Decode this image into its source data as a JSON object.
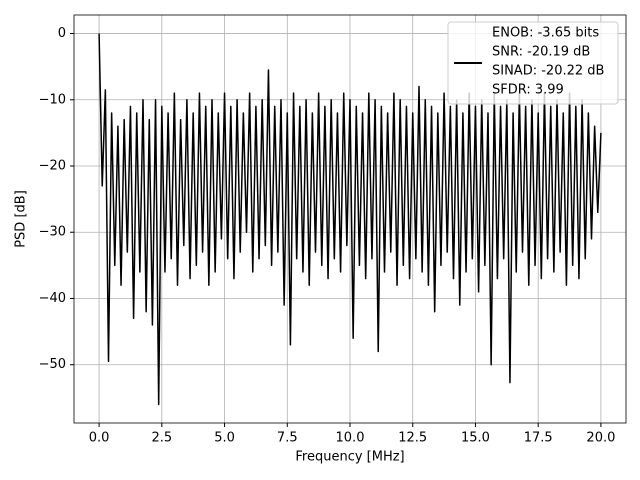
{
  "chart_data": {
    "type": "line",
    "xlabel": "Frequency [MHz]",
    "ylabel": "PSD [dB]",
    "xlim": [
      -1,
      21
    ],
    "ylim": [
      -58.8,
      2.8
    ],
    "xticks": [
      {
        "value": 0,
        "label": "0.0"
      },
      2.5,
      {
        "value": 5,
        "label": "5.0"
      },
      7.5,
      {
        "value": 10,
        "label": "10.0"
      },
      12.5,
      {
        "value": 15,
        "label": "15.0"
      },
      17.5,
      {
        "value": 20,
        "label": "20.0"
      }
    ],
    "yticks": [
      {
        "value": 0,
        "label": "0"
      },
      {
        "value": -10,
        "label": "−10"
      },
      {
        "value": -20,
        "label": "−20"
      },
      {
        "value": -30,
        "label": "−30"
      },
      {
        "value": -40,
        "label": "−40"
      },
      {
        "value": -50,
        "label": "−50"
      }
    ],
    "grid": true,
    "legend": "upper right",
    "x": [
      0,
      0.125,
      0.25,
      0.375,
      0.5,
      0.625,
      0.75,
      0.875,
      1,
      1.125,
      1.25,
      1.375,
      1.5,
      1.625,
      1.75,
      1.875,
      2,
      2.125,
      2.25,
      2.375,
      2.5,
      2.625,
      2.75,
      2.875,
      3,
      3.125,
      3.25,
      3.375,
      3.5,
      3.625,
      3.75,
      3.875,
      4,
      4.125,
      4.25,
      4.375,
      4.5,
      4.625,
      4.75,
      4.875,
      5,
      5.125,
      5.25,
      5.375,
      5.5,
      5.625,
      5.75,
      5.875,
      6,
      6.125,
      6.25,
      6.375,
      6.5,
      6.625,
      6.75,
      6.875,
      7,
      7.125,
      7.25,
      7.375,
      7.5,
      7.625,
      7.75,
      7.875,
      8,
      8.125,
      8.25,
      8.375,
      8.5,
      8.625,
      8.75,
      8.875,
      9,
      9.125,
      9.25,
      9.375,
      9.5,
      9.625,
      9.75,
      9.875,
      10,
      10.125,
      10.25,
      10.375,
      10.5,
      10.625,
      10.75,
      10.875,
      11,
      11.125,
      11.25,
      11.375,
      11.5,
      11.625,
      11.75,
      11.875,
      12,
      12.125,
      12.25,
      12.375,
      12.5,
      12.625,
      12.75,
      12.875,
      13,
      13.125,
      13.25,
      13.375,
      13.5,
      13.625,
      13.75,
      13.875,
      14,
      14.125,
      14.25,
      14.375,
      14.5,
      14.625,
      14.75,
      14.875,
      15,
      15.125,
      15.25,
      15.375,
      15.5,
      15.625,
      15.75,
      15.875,
      16,
      16.125,
      16.25,
      16.375,
      16.5,
      16.625,
      16.75,
      16.875,
      17,
      17.125,
      17.25,
      17.375,
      17.5,
      17.625,
      17.75,
      17.875,
      18,
      18.125,
      18.25,
      18.375,
      18.5,
      18.625,
      18.75,
      18.875,
      19,
      19.125,
      19.25,
      19.375,
      19.5,
      19.625,
      19.75,
      19.875,
      20
    ],
    "series": [
      {
        "name": [
          "ENOB: -3.65 bits",
          "SNR: -20.19 dB",
          "SINAD: -20.22 dB",
          "SFDR: 3.99"
        ],
        "color": "#000000",
        "values": [
          0,
          -23,
          -8.5,
          -49.5,
          -12,
          -35,
          -14,
          -38,
          -13,
          -33,
          -11,
          -43,
          -12,
          -36,
          -10,
          -42,
          -13,
          -44,
          -10,
          -56,
          -11,
          -36,
          -12,
          -34,
          -9,
          -38,
          -13,
          -32,
          -10,
          -37,
          -12,
          -35,
          -9,
          -33,
          -11,
          -38,
          -10,
          -36,
          -12,
          -31,
          -9,
          -34,
          -11,
          -37,
          -10,
          -33,
          -12,
          -30,
          -9,
          -36,
          -11,
          -34,
          -10,
          -32,
          -5.5,
          -35,
          -11,
          -33,
          -10,
          -41,
          -12,
          -47,
          -9,
          -34,
          -11,
          -36,
          -10,
          -38,
          -12,
          -33,
          -9,
          -35,
          -11,
          -37,
          -10,
          -34,
          -12,
          -36,
          -9,
          -32,
          -10,
          -46,
          -11,
          -35,
          -12,
          -37,
          -9,
          -34,
          -10,
          -48,
          -11,
          -36,
          -12,
          -33,
          -9,
          -38,
          -10,
          -35,
          -11,
          -37,
          -12,
          -34,
          -8,
          -36,
          -10,
          -38,
          -11,
          -42,
          -12,
          -35,
          -9,
          -33,
          -11,
          -37,
          -10,
          -41,
          -12,
          -36,
          -9,
          -34,
          -11,
          -39,
          -10,
          -35,
          -12,
          -50,
          -9,
          -37,
          -11,
          -34,
          -10,
          -52.7,
          -12,
          -36,
          -9,
          -33,
          -11,
          -38,
          -10,
          -35,
          -12,
          -37,
          -9,
          -34,
          -11,
          -36,
          -10,
          -33,
          -12,
          -38,
          -9,
          -35,
          -11,
          -37,
          -10,
          -34,
          -12,
          -31,
          -14,
          -27,
          -15
        ]
      }
    ]
  }
}
